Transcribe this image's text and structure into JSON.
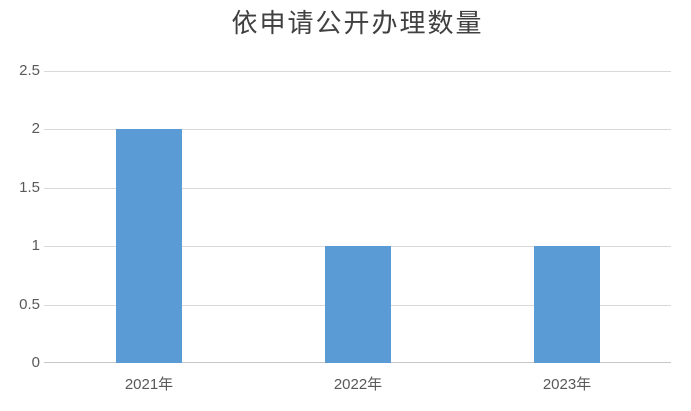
{
  "chart_data": {
    "type": "bar",
    "title": "依申请公开办理数量",
    "categories": [
      "2021年",
      "2022年",
      "2023年"
    ],
    "values": [
      2,
      1,
      1
    ],
    "xlabel": "",
    "ylabel": "",
    "ylim": [
      0,
      2.5
    ],
    "yticks": [
      0,
      0.5,
      1,
      1.5,
      2,
      2.5
    ],
    "grid": true,
    "legend": false,
    "colors": {
      "bar": "#5B9BD5",
      "gridline": "#D9D9D9",
      "axis_line": "#C6C6C6",
      "title_text": "#404040",
      "tick_text": "#595959",
      "background": "#FFFFFF"
    }
  }
}
